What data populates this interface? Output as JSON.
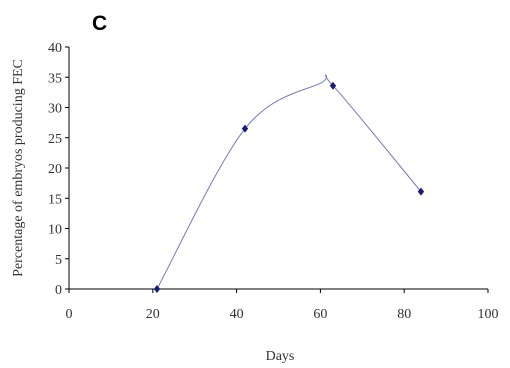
{
  "chart_data": {
    "type": "scatter",
    "panel_label": "C",
    "title": "",
    "xlabel": "Days",
    "ylabel": "Percentage of embryos producing FEC",
    "xlim": [
      0,
      100
    ],
    "ylim": [
      0,
      40
    ],
    "x_ticks": [
      0,
      20,
      40,
      60,
      80,
      100
    ],
    "y_ticks": [
      0,
      5,
      10,
      15,
      20,
      25,
      30,
      35,
      40
    ],
    "x_tick_labels": [
      "0",
      "20",
      "40",
      "60",
      "80",
      "100"
    ],
    "y_tick_labels": [
      "0",
      "5",
      "10",
      "15",
      "20",
      "25",
      "30",
      "35",
      "40"
    ],
    "grid": false,
    "legend": "none",
    "series": [
      {
        "x": [
          21,
          42,
          63,
          84
        ],
        "y": [
          0,
          26.5,
          33.6,
          16.1
        ],
        "marker": "diamond",
        "trendline": "polynomial",
        "marker_color": "#1b1b7a",
        "line_color": "#7878c0"
      }
    ],
    "curve_peak": {
      "x": 60,
      "y": 34
    }
  }
}
